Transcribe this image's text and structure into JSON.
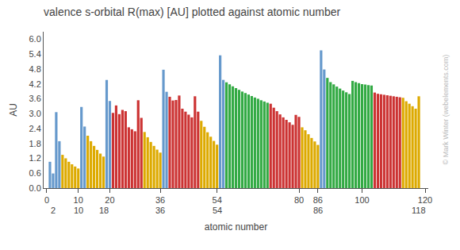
{
  "chart_data": {
    "type": "bar",
    "title": "valence s-orbital R(max) [AU] plotted against atomic number",
    "xlabel": "atomic number",
    "ylabel": "AU",
    "x": [
      1,
      2,
      3,
      4,
      5,
      6,
      7,
      8,
      9,
      10,
      11,
      12,
      13,
      14,
      15,
      16,
      17,
      18,
      19,
      20,
      21,
      22,
      23,
      24,
      25,
      26,
      27,
      28,
      29,
      30,
      31,
      32,
      33,
      34,
      35,
      36,
      37,
      38,
      39,
      40,
      41,
      42,
      43,
      44,
      45,
      46,
      47,
      48,
      49,
      50,
      51,
      52,
      53,
      54,
      55,
      56,
      57,
      58,
      59,
      60,
      61,
      62,
      63,
      64,
      65,
      66,
      67,
      68,
      69,
      70,
      71,
      72,
      73,
      74,
      75,
      76,
      77,
      78,
      79,
      80,
      81,
      82,
      83,
      84,
      85,
      86,
      87,
      88,
      89,
      90,
      91,
      92,
      93,
      94,
      95,
      96,
      97,
      98,
      99,
      100,
      101,
      102,
      103,
      104,
      105,
      106,
      107,
      108,
      109,
      110,
      111,
      112,
      113,
      114,
      115,
      116,
      117,
      118
    ],
    "values": [
      1.06,
      0.59,
      3.06,
      1.89,
      1.34,
      1.2,
      1.06,
      0.96,
      0.87,
      0.79,
      3.27,
      2.48,
      2.11,
      1.89,
      1.7,
      1.54,
      1.39,
      1.27,
      4.36,
      3.51,
      3.03,
      3.33,
      2.98,
      3.15,
      3.1,
      2.45,
      2.37,
      2.29,
      3.54,
      2.83,
      2.26,
      2.05,
      1.86,
      1.7,
      1.55,
      1.43,
      4.77,
      3.88,
      3.68,
      3.53,
      3.55,
      3.73,
      3.2,
      3.08,
      2.96,
      2.85,
      3.7,
      3.08,
      2.71,
      2.47,
      2.25,
      2.07,
      1.9,
      1.75,
      5.35,
      4.36,
      4.26,
      4.18,
      4.1,
      4.03,
      3.96,
      3.89,
      3.83,
      3.77,
      3.71,
      3.65,
      3.6,
      3.54,
      3.49,
      3.44,
      3.4,
      3.24,
      3.1,
      2.97,
      2.85,
      2.75,
      2.65,
      2.55,
      2.95,
      2.87,
      2.45,
      2.33,
      2.17,
      2.02,
      1.88,
      1.74,
      5.55,
      4.78,
      4.44,
      4.27,
      4.18,
      4.09,
      4.01,
      3.93,
      3.86,
      3.79,
      4.32,
      4.27,
      4.23,
      4.19,
      4.17,
      4.15,
      4.13,
      3.85,
      3.8,
      3.78,
      3.76,
      3.74,
      3.72,
      3.7,
      3.68,
      3.66,
      3.64,
      3.5,
      3.4,
      3.3,
      3.2,
      3.7
    ],
    "colors": [
      "#6699cc",
      "#6699cc",
      "#6699cc",
      "#6699cc",
      "#ddaa00",
      "#ddaa00",
      "#ddaa00",
      "#ddaa00",
      "#ddaa00",
      "#ddaa00",
      "#6699cc",
      "#6699cc",
      "#ddaa00",
      "#ddaa00",
      "#ddaa00",
      "#ddaa00",
      "#ddaa00",
      "#ddaa00",
      "#6699cc",
      "#6699cc",
      "#cc3333",
      "#cc3333",
      "#cc3333",
      "#cc3333",
      "#cc3333",
      "#cc3333",
      "#cc3333",
      "#cc3333",
      "#cc3333",
      "#cc3333",
      "#ddaa00",
      "#ddaa00",
      "#ddaa00",
      "#ddaa00",
      "#ddaa00",
      "#ddaa00",
      "#6699cc",
      "#6699cc",
      "#cc3333",
      "#cc3333",
      "#cc3333",
      "#cc3333",
      "#cc3333",
      "#cc3333",
      "#cc3333",
      "#cc3333",
      "#cc3333",
      "#cc3333",
      "#ddaa00",
      "#ddaa00",
      "#ddaa00",
      "#ddaa00",
      "#ddaa00",
      "#ddaa00",
      "#6699cc",
      "#6699cc",
      "#33aa44",
      "#33aa44",
      "#33aa44",
      "#33aa44",
      "#33aa44",
      "#33aa44",
      "#33aa44",
      "#33aa44",
      "#33aa44",
      "#33aa44",
      "#33aa44",
      "#33aa44",
      "#33aa44",
      "#33aa44",
      "#cc3333",
      "#cc3333",
      "#cc3333",
      "#cc3333",
      "#cc3333",
      "#cc3333",
      "#cc3333",
      "#cc3333",
      "#cc3333",
      "#cc3333",
      "#ddaa00",
      "#ddaa00",
      "#ddaa00",
      "#ddaa00",
      "#ddaa00",
      "#ddaa00",
      "#6699cc",
      "#6699cc",
      "#33aa44",
      "#33aa44",
      "#33aa44",
      "#33aa44",
      "#33aa44",
      "#33aa44",
      "#33aa44",
      "#33aa44",
      "#33aa44",
      "#33aa44",
      "#33aa44",
      "#33aa44",
      "#33aa44",
      "#33aa44",
      "#33aa44",
      "#cc3333",
      "#cc3333",
      "#cc3333",
      "#cc3333",
      "#cc3333",
      "#cc3333",
      "#cc3333",
      "#cc3333",
      "#cc3333",
      "#ddaa00",
      "#ddaa00",
      "#ddaa00",
      "#ddaa00",
      "#ddaa00",
      "#ddaa00"
    ],
    "xlim": [
      -1,
      121
    ],
    "xticks": [
      0,
      10,
      20,
      36,
      54,
      80,
      86,
      100,
      120
    ],
    "ylim": [
      0,
      6.3
    ],
    "yticks": [
      {
        "value": 0,
        "label": "0.0"
      },
      0.6,
      1.2,
      1.8,
      2.4,
      {
        "value": 3.0,
        "label": "3.0"
      },
      3.6,
      4.2,
      4.8,
      5.4,
      {
        "value": 6.0,
        "label": "6.0"
      }
    ],
    "grid": false,
    "annotations": [
      {
        "x": 2,
        "text": "2"
      },
      {
        "x": 10,
        "text": "10"
      },
      {
        "x": 18,
        "text": "18"
      },
      {
        "x": 36,
        "text": "36"
      },
      {
        "x": 54,
        "text": "54"
      },
      {
        "x": 86,
        "text": "86"
      },
      {
        "x": 118,
        "text": "118"
      },
      {
        "text": "© Mark Winter (webelements.com)"
      }
    ]
  }
}
